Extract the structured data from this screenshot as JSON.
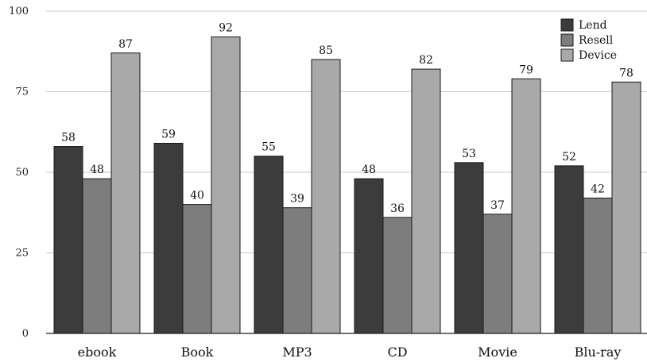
{
  "chart_data": {
    "type": "bar",
    "title": "",
    "xlabel": "",
    "ylabel": "",
    "categories": [
      "ebook",
      "Book",
      "MP3",
      "CD",
      "Movie",
      "Blu-ray"
    ],
    "series": [
      {
        "name": "Lend",
        "values": [
          58,
          59,
          55,
          48,
          53,
          52
        ],
        "color": "#3c3c3c"
      },
      {
        "name": "Resell",
        "values": [
          48,
          40,
          39,
          36,
          37,
          42
        ],
        "color": "#7d7d7d"
      },
      {
        "name": "Device",
        "values": [
          87,
          92,
          85,
          82,
          79,
          78
        ],
        "color": "#a9a9a9"
      }
    ],
    "ylim": [
      0,
      100
    ],
    "yticks": [
      0,
      25,
      50,
      75,
      100
    ],
    "grid": true,
    "legend_position": "top-right",
    "data_labels": true
  }
}
